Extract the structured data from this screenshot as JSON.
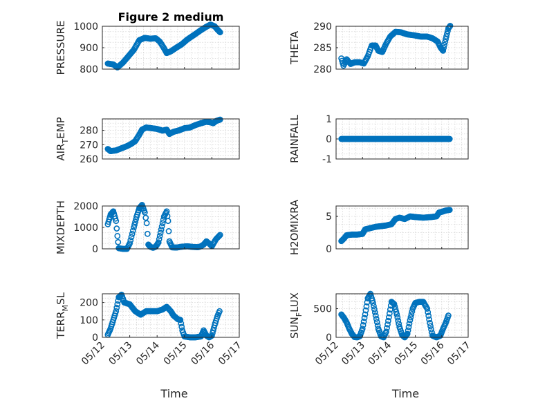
{
  "figure": {
    "title": "Figure 2 medium"
  },
  "styles": {
    "marker_color": "#0072BD",
    "axis_color": "#262626"
  },
  "chart_data": [
    {
      "type": "scatter",
      "ylabel": "PRESSURE",
      "title": "Figure 2 medium",
      "grid": true,
      "xlim": [
        12,
        17
      ],
      "ylim": [
        800,
        1000
      ],
      "yticks": [
        800,
        900,
        1000
      ],
      "ytick_labels": [
        "800",
        "900",
        "1000"
      ],
      "x_tick_labels_visible": false,
      "anchors": [
        [
          12.2,
          826
        ],
        [
          12.4,
          822
        ],
        [
          12.55,
          808
        ],
        [
          12.75,
          830
        ],
        [
          12.95,
          860
        ],
        [
          13.15,
          890
        ],
        [
          13.35,
          935
        ],
        [
          13.55,
          946
        ],
        [
          13.75,
          942
        ],
        [
          13.95,
          944
        ],
        [
          14.1,
          928
        ],
        [
          14.25,
          898
        ],
        [
          14.35,
          875
        ],
        [
          14.5,
          883
        ],
        [
          14.7,
          900
        ],
        [
          14.9,
          916
        ],
        [
          15.1,
          938
        ],
        [
          15.4,
          964
        ],
        [
          15.6,
          982
        ],
        [
          15.8,
          998
        ],
        [
          15.95,
          1008
        ],
        [
          16.1,
          1000
        ],
        [
          16.2,
          985
        ],
        [
          16.3,
          972
        ]
      ]
    },
    {
      "type": "scatter",
      "ylabel": "THETA",
      "grid": true,
      "xlim": [
        12,
        17
      ],
      "ylim": [
        280,
        290
      ],
      "yticks": [
        280,
        285,
        290
      ],
      "ytick_labels": [
        "280",
        "285",
        "290"
      ],
      "x_tick_labels_visible": false,
      "anchors": [
        [
          12.2,
          282.5
        ],
        [
          12.28,
          280.8
        ],
        [
          12.4,
          282.3
        ],
        [
          12.55,
          281.2
        ],
        [
          12.7,
          281.6
        ],
        [
          12.9,
          281.6
        ],
        [
          13.05,
          281.3
        ],
        [
          13.2,
          283
        ],
        [
          13.35,
          285.5
        ],
        [
          13.5,
          285.5
        ],
        [
          13.6,
          284.3
        ],
        [
          13.75,
          284
        ],
        [
          13.9,
          286
        ],
        [
          14.05,
          287.6
        ],
        [
          14.25,
          288.7
        ],
        [
          14.45,
          288.6
        ],
        [
          14.7,
          288.1
        ],
        [
          14.95,
          287.9
        ],
        [
          15.2,
          287.6
        ],
        [
          15.45,
          287.6
        ],
        [
          15.65,
          287.2
        ],
        [
          15.85,
          286.4
        ],
        [
          15.95,
          285.1
        ],
        [
          16.05,
          284.3
        ],
        [
          16.15,
          287
        ],
        [
          16.25,
          289.5
        ],
        [
          16.32,
          290.1
        ]
      ]
    },
    {
      "type": "scatter",
      "ylabel": "AIR",
      "ylabel_sub": "T",
      "ylabel_suffix": "EMP",
      "grid": true,
      "xlim": [
        12,
        17
      ],
      "ylim": [
        260,
        288
      ],
      "yticks": [
        260,
        270,
        280
      ],
      "ytick_labels": [
        "260",
        "270",
        "280"
      ],
      "x_tick_labels_visible": false,
      "anchors": [
        [
          12.2,
          267
        ],
        [
          12.3,
          265.5
        ],
        [
          12.5,
          266
        ],
        [
          12.7,
          267.5
        ],
        [
          12.9,
          269
        ],
        [
          13.05,
          270.5
        ],
        [
          13.2,
          272.5
        ],
        [
          13.35,
          277
        ],
        [
          13.45,
          280.5
        ],
        [
          13.6,
          282
        ],
        [
          13.8,
          281.5
        ],
        [
          14.0,
          281
        ],
        [
          14.2,
          279.8
        ],
        [
          14.35,
          280.5
        ],
        [
          14.45,
          277.5
        ],
        [
          14.6,
          279
        ],
        [
          14.8,
          280
        ],
        [
          15.0,
          281.5
        ],
        [
          15.2,
          282
        ],
        [
          15.4,
          283.7
        ],
        [
          15.6,
          285
        ],
        [
          15.8,
          286
        ],
        [
          15.95,
          285.6
        ],
        [
          16.05,
          285
        ],
        [
          16.15,
          286.5
        ],
        [
          16.3,
          287.5
        ]
      ]
    },
    {
      "type": "scatter",
      "ylabel": "RAINFALL",
      "grid": true,
      "xlim": [
        12,
        17
      ],
      "ylim": [
        -1,
        1
      ],
      "yticks": [
        -1,
        0,
        1
      ],
      "ytick_labels": [
        "-1",
        "0",
        "1"
      ],
      "x_tick_labels_visible": false,
      "anchors": [
        [
          12.2,
          0
        ],
        [
          16.3,
          0
        ]
      ]
    },
    {
      "type": "scatter",
      "ylabel": "MIXDEPTH",
      "grid": true,
      "xlim": [
        12,
        17
      ],
      "ylim": [
        0,
        2000
      ],
      "yticks": [
        0,
        1000,
        2000
      ],
      "ytick_labels": [
        "0",
        "1000",
        "2000"
      ],
      "x_tick_labels_visible": false,
      "anchors": [
        [
          12.2,
          1150
        ],
        [
          12.3,
          1600
        ],
        [
          12.4,
          1750
        ],
        [
          12.5,
          1300
        ],
        [
          12.55,
          600
        ],
        [
          12.6,
          30
        ],
        [
          12.75,
          0
        ],
        [
          12.9,
          0
        ],
        [
          13.0,
          250
        ],
        [
          13.15,
          1000
        ],
        [
          13.25,
          1500
        ],
        [
          13.35,
          1900
        ],
        [
          13.45,
          2050
        ],
        [
          13.55,
          1700
        ],
        [
          13.62,
          1200
        ],
        [
          13.68,
          200
        ],
        [
          13.75,
          100
        ],
        [
          13.85,
          50
        ],
        [
          13.95,
          100
        ],
        [
          14.05,
          300
        ],
        [
          14.15,
          900
        ],
        [
          14.25,
          1500
        ],
        [
          14.35,
          1750
        ],
        [
          14.4,
          1300
        ],
        [
          14.45,
          350
        ],
        [
          14.55,
          70
        ],
        [
          14.7,
          60
        ],
        [
          14.9,
          100
        ],
        [
          15.1,
          120
        ],
        [
          15.3,
          90
        ],
        [
          15.5,
          80
        ],
        [
          15.6,
          120
        ],
        [
          15.7,
          200
        ],
        [
          15.8,
          350
        ],
        [
          15.9,
          250
        ],
        [
          16.0,
          120
        ],
        [
          16.15,
          450
        ],
        [
          16.3,
          650
        ]
      ]
    },
    {
      "type": "scatter",
      "ylabel": "H2OMIXRA",
      "grid": true,
      "xlim": [
        12,
        17
      ],
      "ylim": [
        0,
        6.6
      ],
      "yticks": [
        0,
        5
      ],
      "ytick_labels": [
        "0",
        "5"
      ],
      "x_tick_labels_visible": false,
      "anchors": [
        [
          12.2,
          1.2
        ],
        [
          12.3,
          1.6
        ],
        [
          12.4,
          2.1
        ],
        [
          12.6,
          2.2
        ],
        [
          12.8,
          2.2
        ],
        [
          13.0,
          2.3
        ],
        [
          13.1,
          3.0
        ],
        [
          13.3,
          3.2
        ],
        [
          13.5,
          3.4
        ],
        [
          13.7,
          3.5
        ],
        [
          13.9,
          3.6
        ],
        [
          14.1,
          3.8
        ],
        [
          14.25,
          4.6
        ],
        [
          14.4,
          4.8
        ],
        [
          14.6,
          4.6
        ],
        [
          14.8,
          5.0
        ],
        [
          15.0,
          4.9
        ],
        [
          15.3,
          4.8
        ],
        [
          15.6,
          4.9
        ],
        [
          15.8,
          5.0
        ],
        [
          15.9,
          5.6
        ],
        [
          16.0,
          5.7
        ],
        [
          16.15,
          5.9
        ],
        [
          16.3,
          6.0
        ]
      ]
    },
    {
      "type": "scatter",
      "ylabel": "TERR",
      "ylabel_sub": "M",
      "ylabel_suffix": "SL",
      "grid": true,
      "xlim": [
        12,
        17
      ],
      "ylim": [
        0,
        250
      ],
      "yticks": [
        0,
        100,
        200
      ],
      "ytick_labels": [
        "0",
        "100",
        "200"
      ],
      "xticks": [
        12,
        13,
        14,
        15,
        16,
        17
      ],
      "xtick_labels": [
        "05/12",
        "05/13",
        "05/14",
        "05/15",
        "05/16",
        "05/17"
      ],
      "xlabel": "Time",
      "anchors": [
        [
          12.2,
          15
        ],
        [
          12.3,
          50
        ],
        [
          12.4,
          100
        ],
        [
          12.5,
          150
        ],
        [
          12.6,
          230
        ],
        [
          12.7,
          245
        ],
        [
          12.8,
          200
        ],
        [
          13.0,
          190
        ],
        [
          13.2,
          150
        ],
        [
          13.4,
          130
        ],
        [
          13.6,
          150
        ],
        [
          13.8,
          150
        ],
        [
          14.0,
          150
        ],
        [
          14.2,
          160
        ],
        [
          14.35,
          175
        ],
        [
          14.5,
          150
        ],
        [
          14.6,
          125
        ],
        [
          14.75,
          105
        ],
        [
          14.85,
          100
        ],
        [
          14.92,
          40
        ],
        [
          15.0,
          5
        ],
        [
          15.2,
          0
        ],
        [
          15.4,
          0
        ],
        [
          15.6,
          5
        ],
        [
          15.7,
          40
        ],
        [
          15.8,
          10
        ],
        [
          15.9,
          0
        ],
        [
          16.0,
          10
        ],
        [
          16.1,
          70
        ],
        [
          16.2,
          120
        ],
        [
          16.28,
          150
        ]
      ]
    },
    {
      "type": "scatter",
      "ylabel": "SUN",
      "ylabel_sub": "F",
      "ylabel_suffix": "LUX",
      "grid": true,
      "xlim": [
        12,
        17
      ],
      "ylim": [
        0,
        760
      ],
      "yticks": [
        0,
        500
      ],
      "ytick_labels": [
        "0",
        "500"
      ],
      "xticks": [
        12,
        13,
        14,
        15,
        16,
        17
      ],
      "xtick_labels": [
        "05/12",
        "05/13",
        "05/14",
        "05/15",
        "05/16",
        "05/17"
      ],
      "xlabel": "Time",
      "anchors": [
        [
          12.2,
          400
        ],
        [
          12.3,
          340
        ],
        [
          12.4,
          260
        ],
        [
          12.5,
          150
        ],
        [
          12.6,
          60
        ],
        [
          12.7,
          5
        ],
        [
          12.8,
          0
        ],
        [
          12.9,
          20
        ],
        [
          13.0,
          150
        ],
        [
          13.1,
          400
        ],
        [
          13.2,
          680
        ],
        [
          13.3,
          760
        ],
        [
          13.4,
          600
        ],
        [
          13.5,
          380
        ],
        [
          13.6,
          150
        ],
        [
          13.7,
          20
        ],
        [
          13.8,
          0
        ],
        [
          13.9,
          100
        ],
        [
          14.0,
          350
        ],
        [
          14.1,
          620
        ],
        [
          14.2,
          580
        ],
        [
          14.3,
          400
        ],
        [
          14.4,
          180
        ],
        [
          14.5,
          40
        ],
        [
          14.6,
          0
        ],
        [
          14.7,
          60
        ],
        [
          14.8,
          300
        ],
        [
          14.9,
          500
        ],
        [
          15.0,
          600
        ],
        [
          15.15,
          620
        ],
        [
          15.3,
          620
        ],
        [
          15.45,
          500
        ],
        [
          15.55,
          250
        ],
        [
          15.65,
          30
        ],
        [
          15.8,
          0
        ],
        [
          15.95,
          30
        ],
        [
          16.05,
          150
        ],
        [
          16.15,
          250
        ],
        [
          16.25,
          380
        ]
      ]
    }
  ]
}
